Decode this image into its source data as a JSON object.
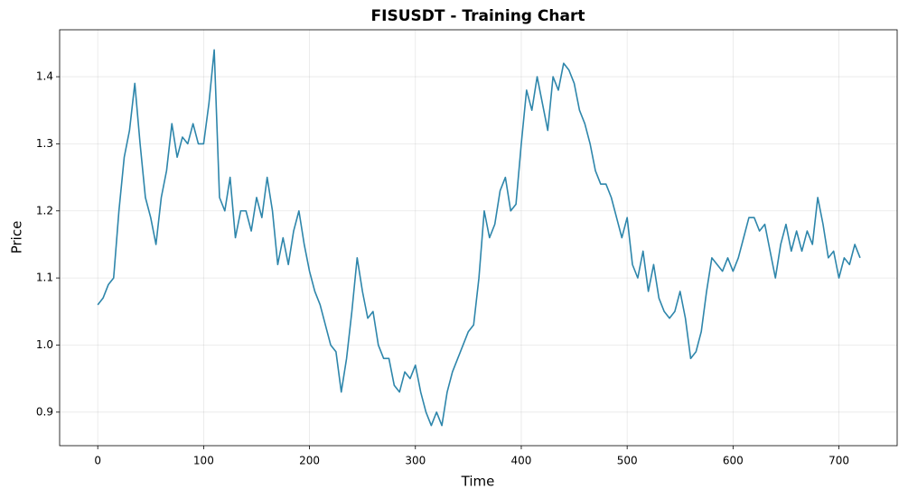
{
  "chart_data": {
    "type": "line",
    "title": "FISUSDT - Training Chart",
    "x_label": "Time",
    "y_label": "Price",
    "x": [
      0,
      5,
      10,
      15,
      20,
      25,
      30,
      35,
      40,
      45,
      50,
      55,
      60,
      65,
      70,
      75,
      80,
      85,
      90,
      95,
      100,
      105,
      110,
      115,
      120,
      125,
      130,
      135,
      140,
      145,
      150,
      155,
      160,
      165,
      170,
      175,
      180,
      185,
      190,
      195,
      200,
      205,
      210,
      215,
      220,
      225,
      230,
      235,
      240,
      245,
      250,
      255,
      260,
      265,
      270,
      275,
      280,
      285,
      290,
      295,
      300,
      305,
      310,
      315,
      320,
      325,
      330,
      335,
      340,
      345,
      350,
      355,
      360,
      365,
      370,
      375,
      380,
      385,
      390,
      395,
      400,
      405,
      410,
      415,
      420,
      425,
      430,
      435,
      440,
      445,
      450,
      455,
      460,
      465,
      470,
      475,
      480,
      485,
      490,
      495,
      500,
      505,
      510,
      515,
      520,
      525,
      530,
      535,
      540,
      545,
      550,
      555,
      560,
      565,
      570,
      575,
      580,
      585,
      590,
      595,
      600,
      605,
      610,
      615,
      620,
      625,
      630,
      635,
      640,
      645,
      650,
      655,
      660,
      665,
      670,
      675,
      680,
      685,
      690,
      695,
      700,
      705,
      710,
      715,
      720
    ],
    "series": [
      {
        "color": "#2e86ab",
        "values": [
          1.06,
          1.07,
          1.09,
          1.1,
          1.2,
          1.28,
          1.32,
          1.39,
          1.3,
          1.22,
          1.19,
          1.15,
          1.22,
          1.26,
          1.33,
          1.28,
          1.31,
          1.3,
          1.33,
          1.3,
          1.3,
          1.36,
          1.44,
          1.22,
          1.2,
          1.25,
          1.16,
          1.2,
          1.2,
          1.17,
          1.22,
          1.19,
          1.25,
          1.2,
          1.12,
          1.16,
          1.12,
          1.17,
          1.2,
          1.15,
          1.11,
          1.08,
          1.06,
          1.03,
          1.0,
          0.99,
          0.93,
          0.98,
          1.05,
          1.13,
          1.08,
          1.04,
          1.05,
          1.0,
          0.98,
          0.98,
          0.94,
          0.93,
          0.96,
          0.95,
          0.97,
          0.93,
          0.9,
          0.88,
          0.9,
          0.88,
          0.93,
          0.96,
          0.98,
          1.0,
          1.02,
          1.03,
          1.1,
          1.2,
          1.16,
          1.18,
          1.23,
          1.25,
          1.2,
          1.21,
          1.3,
          1.38,
          1.35,
          1.4,
          1.36,
          1.32,
          1.4,
          1.38,
          1.42,
          1.41,
          1.39,
          1.35,
          1.33,
          1.3,
          1.26,
          1.24,
          1.24,
          1.22,
          1.19,
          1.16,
          1.19,
          1.12,
          1.1,
          1.14,
          1.08,
          1.12,
          1.07,
          1.05,
          1.04,
          1.05,
          1.08,
          1.04,
          0.98,
          0.99,
          1.02,
          1.08,
          1.13,
          1.12,
          1.11,
          1.13,
          1.11,
          1.13,
          1.16,
          1.19,
          1.19,
          1.17,
          1.18,
          1.14,
          1.1,
          1.15,
          1.18,
          1.14,
          1.17,
          1.14,
          1.17,
          1.15,
          1.22,
          1.18,
          1.13,
          1.14,
          1.1,
          1.13,
          1.12,
          1.15,
          1.13
        ]
      }
    ],
    "xlim": [
      -36,
      755
    ],
    "ylim": [
      0.85,
      1.47
    ],
    "xticks": [
      0,
      100,
      200,
      300,
      400,
      500,
      600,
      700
    ],
    "yticks": [
      0.9,
      {
        "value": 1,
        "label": "1.0"
      },
      1.1,
      1.2,
      1.3,
      1.4
    ],
    "grid": true
  }
}
